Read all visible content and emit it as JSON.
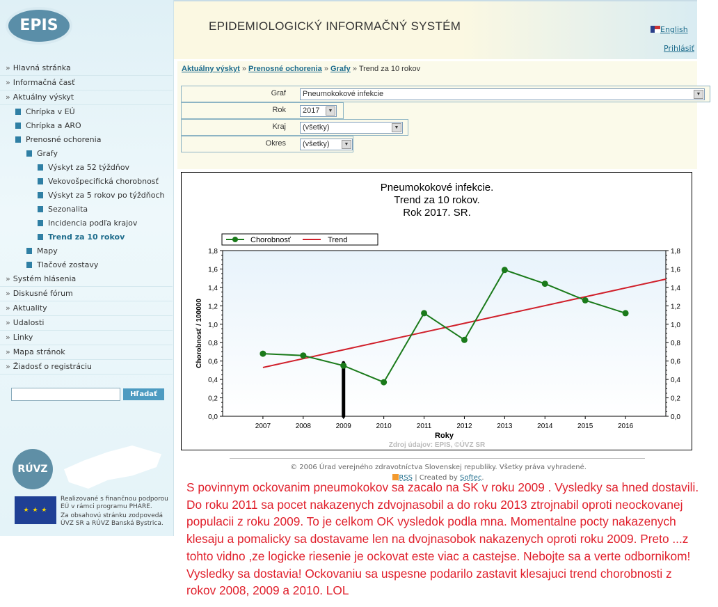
{
  "header": {
    "logo": "EPIS",
    "title": "EPIDEMIOLOGICKÝ INFORMAČNÝ SYSTÉM",
    "english": "English",
    "login": "Prihlásiť"
  },
  "sidebar": {
    "items": [
      {
        "label": "Hlavná stránka",
        "level": 0
      },
      {
        "label": "Informačná časť",
        "level": 0
      },
      {
        "label": "Aktuálny výskyt",
        "level": 0
      },
      {
        "label": "Chrípka v EÚ",
        "level": 1
      },
      {
        "label": "Chrípka a ARO",
        "level": 1
      },
      {
        "label": "Prenosné ochorenia",
        "level": 1
      },
      {
        "label": "Grafy",
        "level": 2
      },
      {
        "label": "Výskyt za 52 týždňov",
        "level": 3
      },
      {
        "label": "Vekovošpecifická chorobnosť",
        "level": 3
      },
      {
        "label": "Výskyt za 5 rokov po týždňoch",
        "level": 3
      },
      {
        "label": "Sezonalita",
        "level": 3
      },
      {
        "label": "Incidencia podľa krajov",
        "level": 3
      },
      {
        "label": "Trend za 10 rokov",
        "level": 3,
        "selected": true
      },
      {
        "label": "Mapy",
        "level": 2
      },
      {
        "label": "Tlačové zostavy",
        "level": 2
      },
      {
        "label": "Systém hlásenia",
        "level": 0
      },
      {
        "label": "Diskusné fórum",
        "level": 0
      },
      {
        "label": "Aktuality",
        "level": 0
      },
      {
        "label": "Udalosti",
        "level": 0
      },
      {
        "label": "Linky",
        "level": 0
      },
      {
        "label": "Mapa stránok",
        "level": 0
      },
      {
        "label": "Žiadosť o registráciu",
        "level": 0
      }
    ],
    "search_value": "",
    "search_button": "Hľadať",
    "ruvz_logo": "RÚVZ",
    "eu_text_1": "Realizované s finančnou podporou EÚ v rámci programu PHARE.",
    "eu_text_2": "Za obsahovú stránku zodpovedá ÚVZ SR a RÚVZ Banská Bystrica."
  },
  "breadcrumb": [
    {
      "label": "Aktuálny výskyt",
      "link": true
    },
    {
      "label": "Prenosné ochorenia",
      "link": true
    },
    {
      "label": "Grafy",
      "link": true
    },
    {
      "label": "Trend za 10 rokov",
      "link": false
    }
  ],
  "breadcrumb_sep": "»",
  "form": {
    "graf": {
      "label": "Graf",
      "value": "Pneumokokové infekcie"
    },
    "rok": {
      "label": "Rok",
      "value": "2017"
    },
    "kraj": {
      "label": "Kraj",
      "value": "(všetky)"
    },
    "okres": {
      "label": "Okres",
      "value": "(všetky)"
    }
  },
  "chart_data": {
    "type": "line",
    "title": [
      "Pneumokokové infekcie.",
      "Trend za 10 rokov.",
      "Rok 2017. SR."
    ],
    "xlabel": "Roky",
    "ylabel": "Chorobnosť / 100000",
    "x": [
      2007,
      2008,
      2009,
      2010,
      2011,
      2012,
      2013,
      2014,
      2015,
      2016
    ],
    "xlim": [
      2006,
      2017
    ],
    "ylim": [
      0,
      1.8
    ],
    "yticks": [
      "0,0",
      "0,2",
      "0,4",
      "0,6",
      "0,8",
      "1,0",
      "1,2",
      "1,4",
      "1,6",
      "1,8"
    ],
    "series": [
      {
        "name": "Chorobnosť",
        "color": "#1a7a1a",
        "values": [
          0.68,
          0.66,
          0.55,
          0.37,
          1.12,
          0.83,
          1.59,
          1.44,
          1.26,
          1.12
        ]
      },
      {
        "name": "Trend",
        "color": "#d01f2a",
        "type": "line",
        "points": [
          [
            2007,
            0.53
          ],
          [
            2017,
            1.49
          ]
        ]
      }
    ],
    "annotation": {
      "type": "vertical-bar",
      "x": 2009,
      "y": [
        0,
        0.58
      ],
      "color": "#000000"
    },
    "legend": "top-left",
    "source": "Zdroj údajov: EPIS, ©ÚVZ SR",
    "background": "#e8f3fb"
  },
  "footer": {
    "copyright": "© 2006 Úrad verejného zdravotníctva Slovenskej republiky. Všetky práva vyhradené.",
    "rss": "RSS",
    "sep": "|",
    "created_by": "Created by",
    "softec": "Softec",
    "dot": "."
  },
  "comment": "S povinnym ockovanim pneumokokov sa zacalo na SK v roku 2009 . Vysledky sa hned dostavili. Do roku 2011 sa pocet nakazenych zdvojnasobil a do roku 2013 ztrojnabil oproti neockovanej populacii z roku 2009. To je celkom OK vysledok podla mna. Momentalne pocty nakazenych klesaju a pomalicky sa dostavame len na dvojnasobok nakazenych oproti roku 2009. Preto ...z tohto vidno ,ze logicke riesenie je ockovat este viac a castejse. Nebojte sa a verte odbornikom! Vysledky sa dostavia! Ockovaniu sa uspesne podarilo zastavit klesajuci trend chorobnosti z rokov 2008, 2009 a 2010.  LOL"
}
